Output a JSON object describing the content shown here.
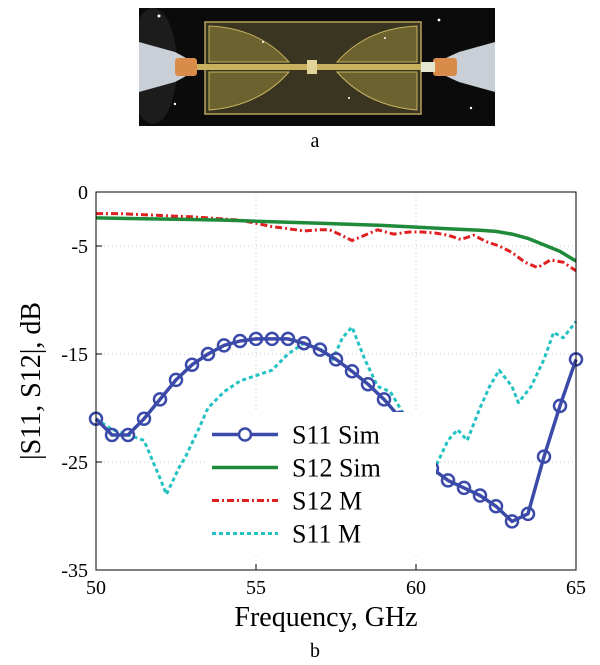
{
  "captions": {
    "a": "a",
    "b": "b"
  },
  "colors": {
    "board_bg": "#0b0b0b",
    "board_gold": "#b8a55a",
    "probe_metal": "#c9cfd6",
    "s11_sim": "#3b4aa8",
    "s12_sim": "#1f8a3a",
    "s12_m": "#e02020",
    "s11_m": "#22c2c2",
    "grid": "#c8c8c8"
  },
  "chart_data": {
    "type": "line",
    "xlabel": "Frequency, GHz",
    "ylabel": "|S11, S12|, dB",
    "xlim": [
      50,
      65
    ],
    "ylim": [
      -35,
      0
    ],
    "xticks": [
      "50",
      "55",
      "60",
      "65"
    ],
    "yticks": [
      "0",
      "-5",
      "-15",
      "-25",
      "-35"
    ],
    "grid": true,
    "legend_position": "bottom-center",
    "series": [
      {
        "name": "S11 Sim",
        "style": "solid-markers",
        "x": [
          50,
          50.5,
          51,
          51.5,
          52,
          52.5,
          53,
          53.5,
          54,
          54.5,
          55,
          55.5,
          56,
          56.5,
          57,
          57.5,
          58,
          58.5,
          59,
          59.5,
          60,
          60.5,
          61,
          61.5,
          62,
          62.5,
          63,
          63.5,
          64,
          64.5,
          65
        ],
        "y": [
          -21.0,
          -22.5,
          -22.5,
          -21.0,
          -19.2,
          -17.4,
          -16.0,
          -15.0,
          -14.2,
          -13.8,
          -13.6,
          -13.6,
          -13.6,
          -14.0,
          -14.6,
          -15.5,
          -16.6,
          -17.8,
          -19.2,
          -20.9,
          -23.2,
          -25.6,
          -26.7,
          -27.4,
          -28.1,
          -29.1,
          -30.5,
          -29.8,
          -24.5,
          -19.8,
          -15.5
        ]
      },
      {
        "name": "S12 Sim",
        "style": "solid",
        "x": [
          50,
          51,
          52,
          53,
          54,
          55,
          56,
          57,
          58,
          59,
          60,
          61,
          62,
          62.5,
          63,
          63.5,
          64,
          64.5,
          65
        ],
        "y": [
          -2.4,
          -2.45,
          -2.5,
          -2.55,
          -2.6,
          -2.7,
          -2.8,
          -2.9,
          -3.0,
          -3.1,
          -3.25,
          -3.4,
          -3.55,
          -3.65,
          -3.9,
          -4.3,
          -4.9,
          -5.5,
          -6.4
        ]
      },
      {
        "name": "S12 M",
        "style": "dashdot",
        "x": [
          50,
          50.7,
          51.5,
          52.2,
          53,
          54,
          54.5,
          55,
          55.5,
          56,
          56.5,
          57,
          57.3,
          57.6,
          58,
          58.4,
          58.8,
          59.3,
          59.8,
          60.2,
          60.6,
          61,
          61.4,
          61.8,
          62.2,
          62.6,
          63,
          63.4,
          63.8,
          64.2,
          64.6,
          65
        ],
        "y": [
          -2.0,
          -2.0,
          -2.1,
          -2.2,
          -2.3,
          -2.5,
          -2.6,
          -2.9,
          -3.2,
          -3.4,
          -3.6,
          -3.5,
          -3.5,
          -3.9,
          -4.5,
          -4.0,
          -3.5,
          -3.9,
          -3.7,
          -3.7,
          -3.8,
          -4.0,
          -4.4,
          -4.0,
          -4.6,
          -5.0,
          -5.6,
          -6.5,
          -7.0,
          -6.3,
          -6.5,
          -7.3
        ]
      },
      {
        "name": "S11 M",
        "style": "dashed",
        "x": [
          50,
          50.5,
          51,
          51.5,
          52,
          52.2,
          52.6,
          52.8,
          53.2,
          53.5,
          54,
          54.5,
          55,
          55.5,
          56,
          56.5,
          57,
          57.4,
          57.7,
          58,
          58.4,
          58.8,
          59.2,
          59.6,
          60,
          60.3,
          60.6,
          61,
          61.3,
          61.6,
          62,
          62.3,
          62.6,
          63,
          63.2,
          63.6,
          64,
          64.3,
          64.6,
          65
        ],
        "y": [
          -21.0,
          -22.0,
          -22.5,
          -23.0,
          -26.5,
          -28.0,
          -25.5,
          -24.5,
          -22.0,
          -20.0,
          -18.5,
          -17.5,
          -17.0,
          -16.5,
          -15.0,
          -14.0,
          -14.5,
          -15.5,
          -13.5,
          -12.5,
          -15.5,
          -18.0,
          -18.5,
          -20.5,
          -22.0,
          -24.0,
          -25.5,
          -23.0,
          -22.0,
          -23.0,
          -20.0,
          -18.0,
          -16.5,
          -18.0,
          -19.5,
          -18.0,
          -15.5,
          -13.0,
          -13.5,
          -12.0
        ]
      }
    ]
  }
}
